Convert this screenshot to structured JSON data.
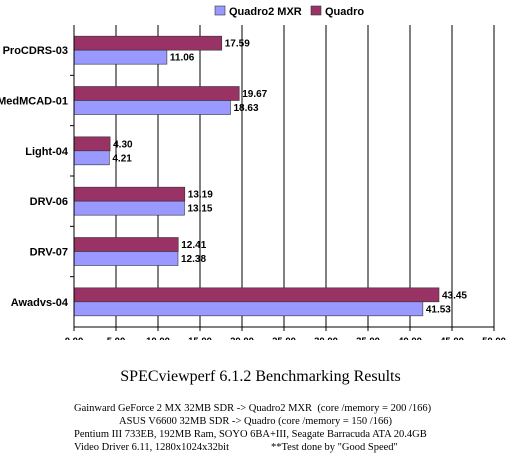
{
  "chart_data": {
    "type": "bar",
    "orientation": "horizontal",
    "categories": [
      "ProCDRS-03",
      "MedMCAD-01",
      "Light-04",
      "DRV-06",
      "DRV-07",
      "Awadvs-04"
    ],
    "series": [
      {
        "name": "Quadro2 MXR",
        "color": "#9999ff",
        "values": [
          11.06,
          18.63,
          4.21,
          13.15,
          12.38,
          41.53
        ]
      },
      {
        "name": "Quadro",
        "color": "#993366",
        "values": [
          17.59,
          19.67,
          4.3,
          13.19,
          12.41,
          43.45
        ]
      }
    ],
    "value_labels": [
      [
        "11.06",
        "18.63",
        "4.21",
        "13.15",
        "12.38",
        "41.53"
      ],
      [
        "17.59",
        "19.67",
        "4.30",
        "13.19",
        "12.41",
        "43.45"
      ]
    ],
    "xlim": [
      0,
      50
    ],
    "xticks": [
      "0.00",
      "5.00",
      "10.00",
      "15.00",
      "20.00",
      "25.00",
      "30.00",
      "35.00",
      "40.00",
      "45.00",
      "50.00"
    ],
    "grid": true,
    "legend_placement": "top-right",
    "title": "SPECviewperf 6.1.2 Benchmarking Results"
  },
  "notes": [
    "Gainward GeForce 2 MX 32MB SDR -> Quadro2 MXR  (core /memory = 200 /166)",
    "ASUS V6600 32MB SDR -> Quadro (core /memory = 150 /166)",
    "Pentium III 733EB, 192MB Ram, SOYO 6BA+III, Seagate Barracuda ATA 20.4GB",
    "Video Driver 6.11, 1280x1024x32bit                **Test done by \"Good Speed\""
  ]
}
